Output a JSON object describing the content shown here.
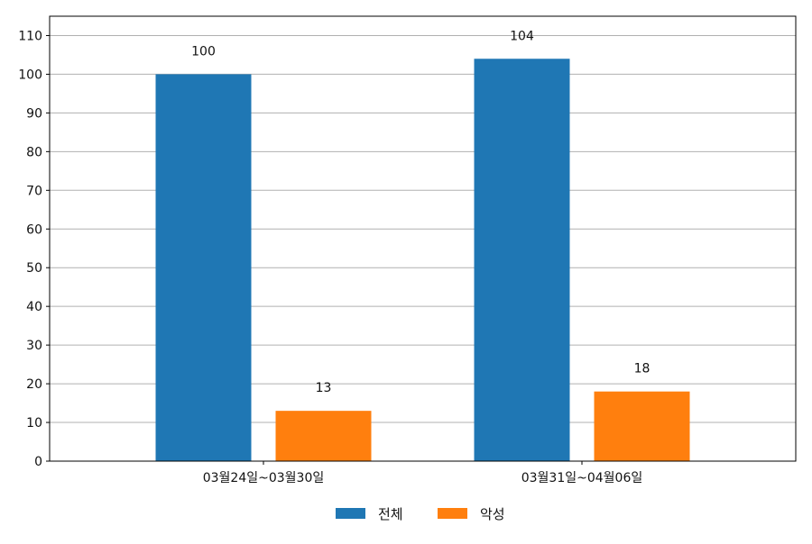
{
  "chart_data": {
    "type": "bar",
    "categories": [
      "03월24일~03월30일",
      "03월31일~04월06일"
    ],
    "series": [
      {
        "name": "전체",
        "color": "#1f77b4",
        "values": [
          100,
          104
        ]
      },
      {
        "name": "악성",
        "color": "#ff7f0e",
        "values": [
          13,
          18
        ]
      }
    ],
    "ylim": [
      0,
      115
    ],
    "yticks": [
      0,
      10,
      20,
      30,
      40,
      50,
      60,
      70,
      80,
      90,
      100,
      110
    ],
    "grid": "horizontal",
    "legend_position": "bottom-center",
    "data_labels": true
  }
}
